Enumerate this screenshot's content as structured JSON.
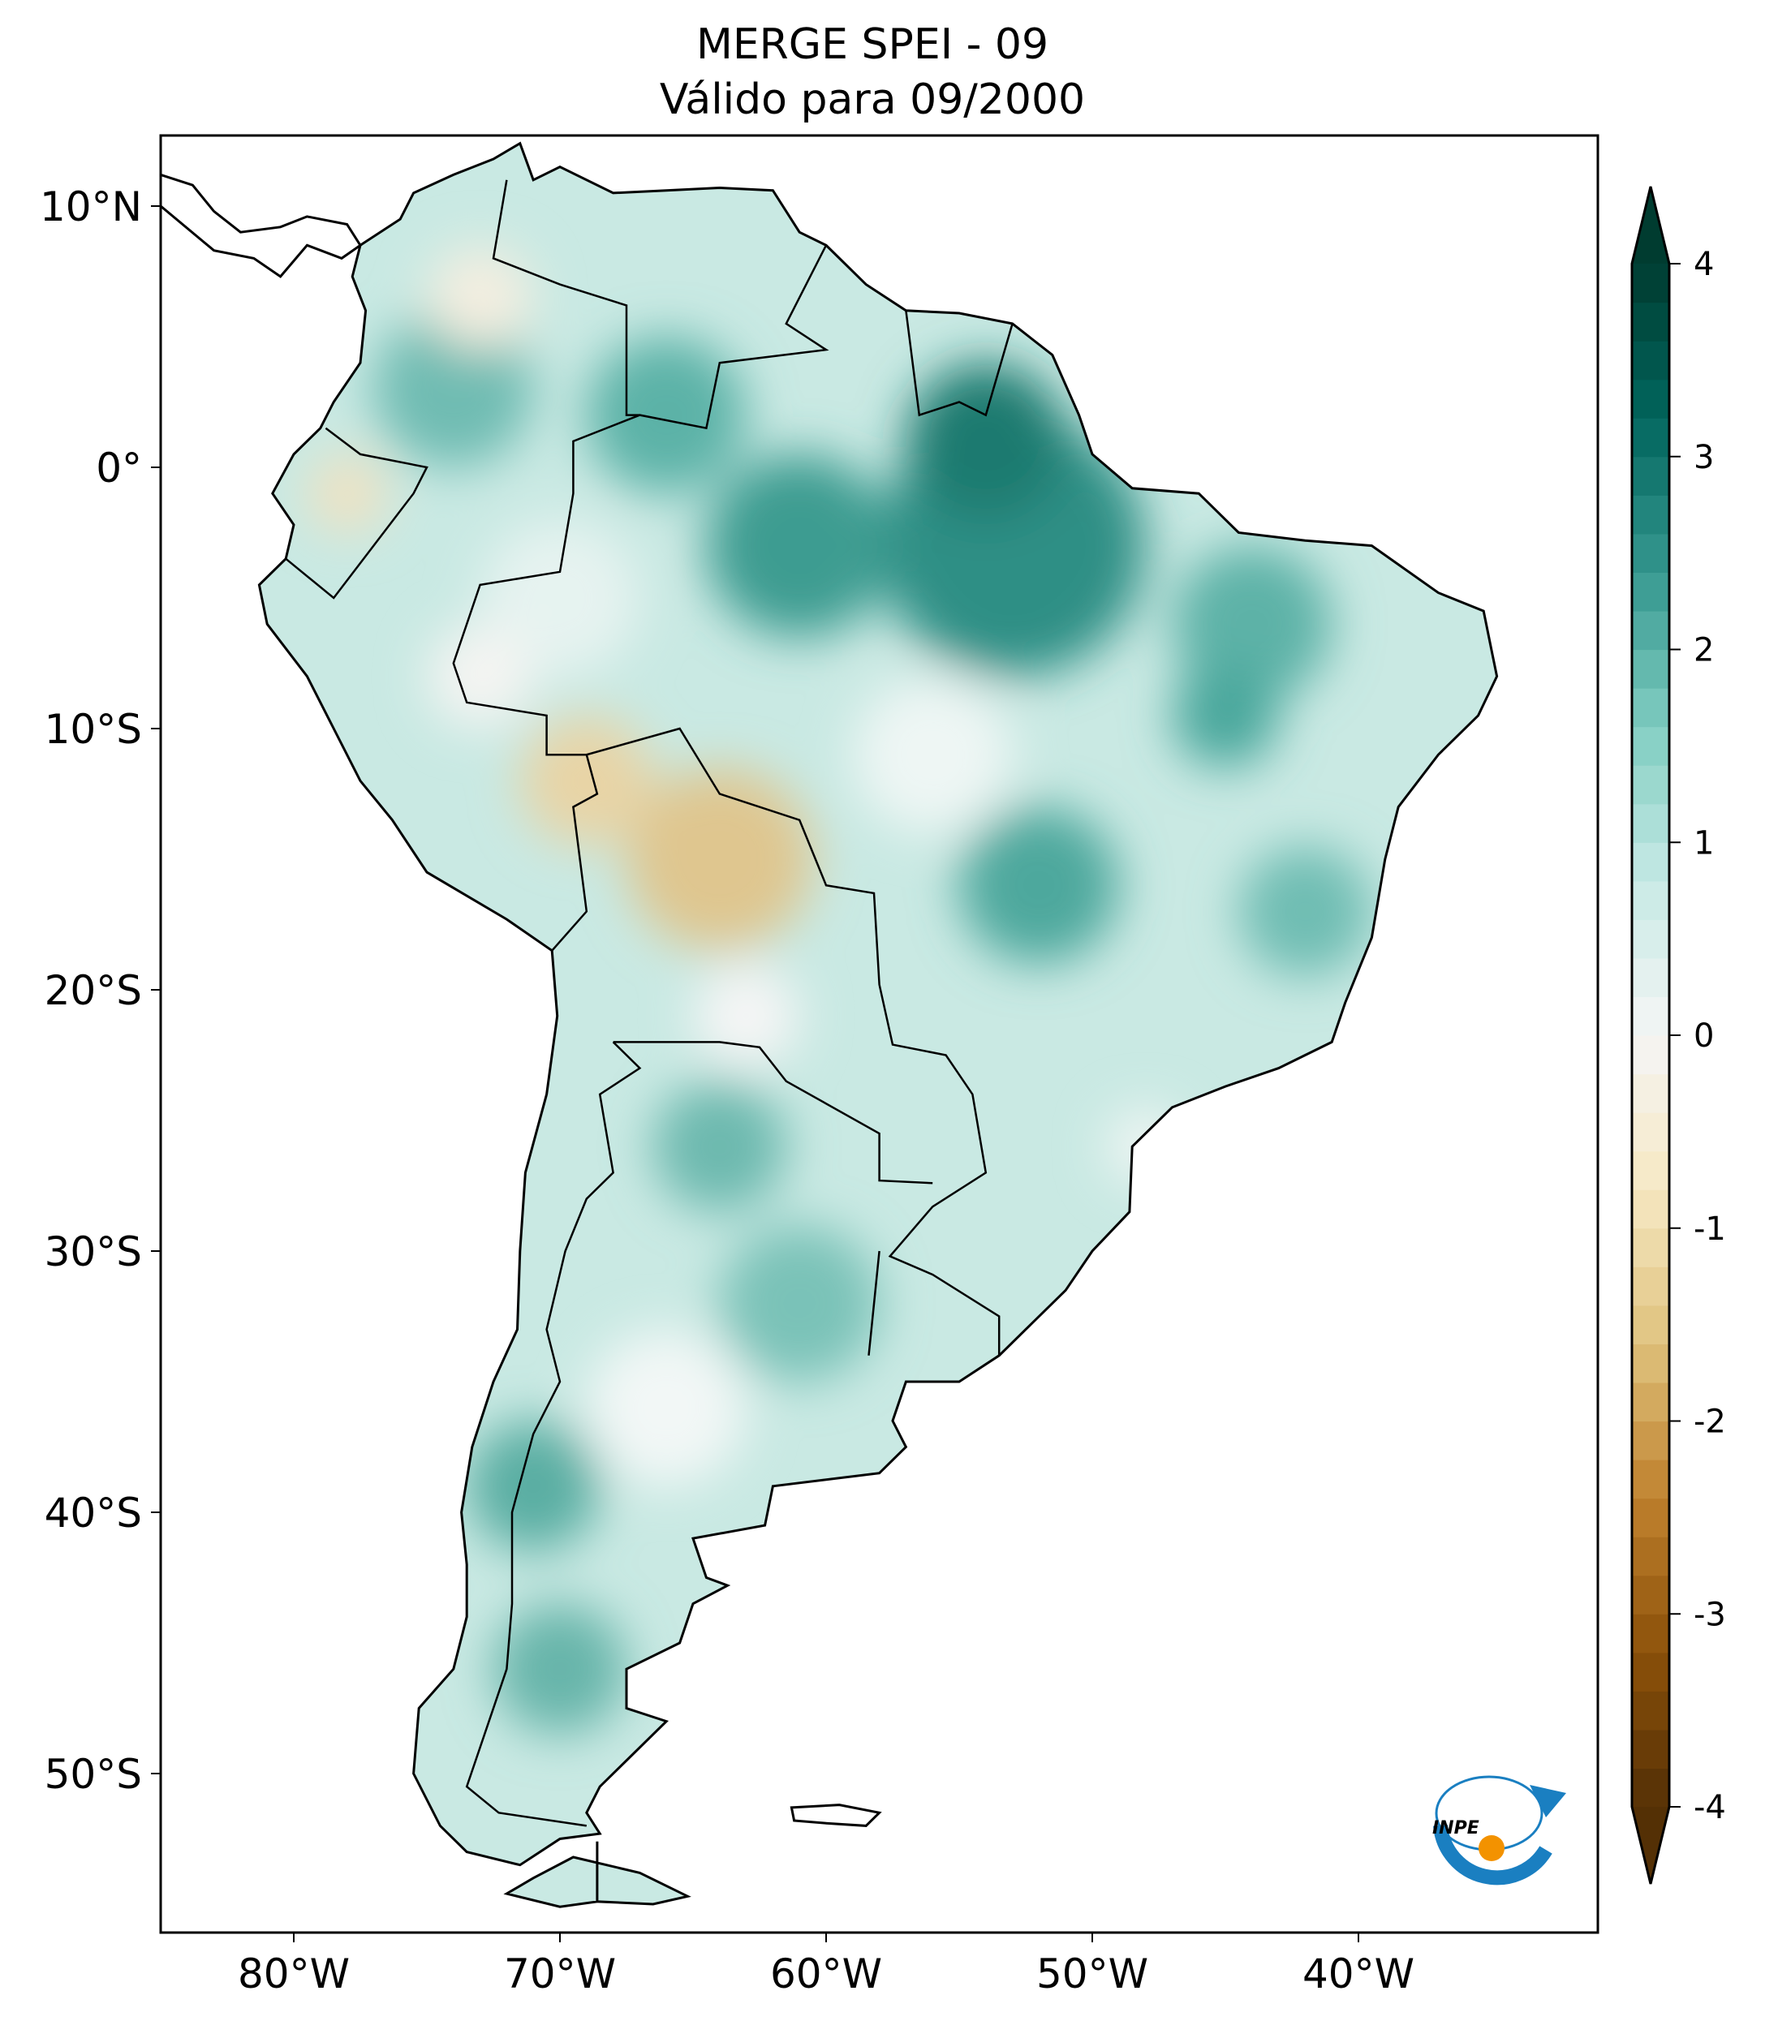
{
  "title": {
    "line1": "MERGE   SPEI - 09",
    "line2": "Válido para 09/2000"
  },
  "chart_data": {
    "type": "heatmap",
    "title": "MERGE   SPEI - 09 / Válido para 09/2000",
    "variable": "SPEI - 09",
    "projection": "PlateCarree",
    "lon_range": [
      -85,
      -31
    ],
    "lat_range": [
      -56,
      12.7
    ],
    "x_ticks": [
      {
        "value": -80,
        "label": "80°W"
      },
      {
        "value": -70,
        "label": "70°W"
      },
      {
        "value": -60,
        "label": "60°W"
      },
      {
        "value": -50,
        "label": "50°W"
      },
      {
        "value": -40,
        "label": "40°W"
      }
    ],
    "y_ticks": [
      {
        "value": 10,
        "label": "10°N"
      },
      {
        "value": 0,
        "label": "0°"
      },
      {
        "value": -10,
        "label": "10°S"
      },
      {
        "value": -20,
        "label": "20°S"
      },
      {
        "value": -30,
        "label": "30°S"
      },
      {
        "value": -40,
        "label": "40°S"
      },
      {
        "value": -50,
        "label": "50°S"
      }
    ],
    "colorbar": {
      "range": [
        -4,
        4
      ],
      "extend": "both",
      "ticks": [
        {
          "value": 4,
          "label": "4"
        },
        {
          "value": 3,
          "label": "3"
        },
        {
          "value": 2,
          "label": "2"
        },
        {
          "value": 1,
          "label": "1"
        },
        {
          "value": 0,
          "label": "0"
        },
        {
          "value": -1,
          "label": "-1"
        },
        {
          "value": -2,
          "label": "-2"
        },
        {
          "value": -3,
          "label": "-3"
        },
        {
          "value": -4,
          "label": "-4"
        }
      ],
      "colormap": [
        "#543005",
        "#8c510a",
        "#bf812d",
        "#dfc27d",
        "#f6e8c3",
        "#f5f5f5",
        "#c7eae5",
        "#80cdc1",
        "#35978f",
        "#01665e",
        "#003c30"
      ]
    },
    "summary": "Predominantly positive SPEI (wet, teal) across most of South America, strongest (~3) over northern Pará/Amapá and central Amazon; negative values (~-1 to -1.5) over Bolivia and southern Peru; near-zero in scattered areas."
  },
  "logo": {
    "text": "INPE",
    "colors": {
      "blue": "#1a7fc1",
      "orange": "#f39200"
    }
  }
}
